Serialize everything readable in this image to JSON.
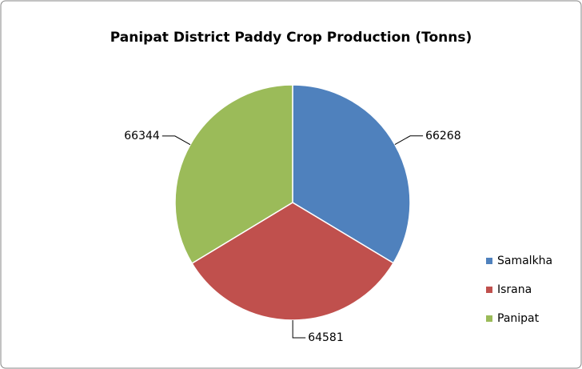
{
  "chart_data": {
    "type": "pie",
    "title": "Panipat District Paddy Crop Production (Tonns)",
    "categories": [
      "Samalkha",
      "Israna",
      "Panipat"
    ],
    "values": [
      66268,
      64581,
      66344
    ],
    "colors": [
      "#4f81bd",
      "#c0504d",
      "#9bbb59"
    ],
    "legend": "right"
  }
}
